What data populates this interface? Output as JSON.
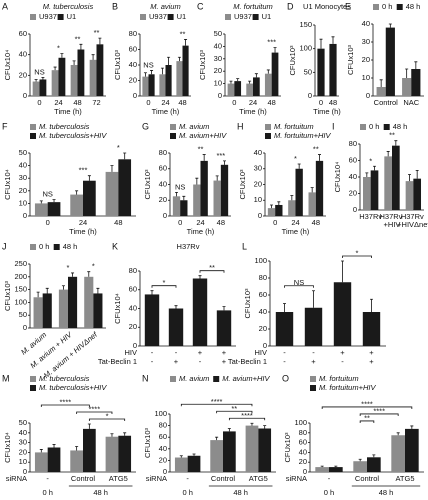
{
  "chart_data": [
    {
      "type": "bar",
      "panel": "A",
      "title": "M. tuberculosis",
      "ylabel": "CFUx10⁴",
      "xlabel": "Time (h)",
      "categories": [
        "0",
        "24",
        "48",
        "72"
      ],
      "series": [
        {
          "name": "U937",
          "color": "#8c8c8c",
          "values": [
            14,
            25,
            30,
            35
          ],
          "errors": [
            2,
            3,
            4,
            5
          ]
        },
        {
          "name": "U1",
          "color": "#1a1a1a",
          "values": [
            16,
            37,
            45,
            50
          ],
          "errors": [
            2,
            4,
            5,
            6
          ]
        }
      ],
      "ylim": [
        0,
        60
      ],
      "yticks": [
        0,
        20,
        40,
        60
      ],
      "significance": [
        "NS",
        "*",
        "**",
        "**"
      ]
    },
    {
      "type": "bar",
      "panel": "B",
      "title": "M. avium",
      "ylabel": "CFUx10³",
      "xlabel": "Time (h)",
      "categories": [
        "0",
        "24",
        "48"
      ],
      "series": [
        {
          "name": "U937",
          "color": "#8c8c8c",
          "values": [
            25,
            28,
            45
          ],
          "errors": [
            5,
            8,
            5
          ]
        },
        {
          "name": "U1",
          "color": "#1a1a1a",
          "values": [
            28,
            40,
            65
          ],
          "errors": [
            5,
            10,
            8
          ]
        }
      ],
      "ylim": [
        0,
        80
      ],
      "yticks": [
        0,
        20,
        40,
        60,
        80
      ],
      "significance": [
        "NS",
        null,
        "**"
      ]
    },
    {
      "type": "bar",
      "panel": "C",
      "title": "M. fortuitum",
      "ylabel": "CFUx10³",
      "xlabel": "Time (h)",
      "categories": [
        "0",
        "24",
        "48"
      ],
      "series": [
        {
          "name": "U937",
          "color": "#8c8c8c",
          "values": [
            10,
            10,
            18
          ],
          "errors": [
            2,
            2,
            3
          ]
        },
        {
          "name": "U1",
          "color": "#1a1a1a",
          "values": [
            12,
            15,
            35
          ],
          "errors": [
            2,
            3,
            4
          ]
        }
      ],
      "ylim": [
        0,
        50
      ],
      "yticks": [
        0,
        10,
        20,
        30,
        40,
        50
      ],
      "significance": [
        null,
        null,
        "***"
      ]
    },
    {
      "type": "bar",
      "panel": "D",
      "title": "U1 Monocytes",
      "ylabel": "CFUx10³",
      "xlabel": "Time (h)",
      "categories": [
        "0",
        "48"
      ],
      "series": [
        {
          "color": "#1a1a1a",
          "values": [
            100,
            110
          ],
          "errors": [
            20,
            15
          ]
        }
      ],
      "ylim": [
        0,
        150
      ],
      "yticks": [
        0,
        50,
        100,
        150
      ]
    },
    {
      "type": "bar",
      "panel": "E",
      "ylabel": "CFUx10³",
      "categories": [
        "Control",
        "NAC"
      ],
      "series": [
        {
          "name": "0 h",
          "color": "#8c8c8c",
          "values": [
            5,
            10
          ],
          "errors": [
            4,
            5
          ]
        },
        {
          "name": "48 h",
          "color": "#1a1a1a",
          "values": [
            38,
            15
          ],
          "errors": [
            2,
            4
          ]
        }
      ],
      "ylim": [
        0,
        40
      ],
      "yticks": [
        0,
        10,
        20,
        30,
        40
      ]
    },
    {
      "type": "bar",
      "panel": "F",
      "ylabel": "CFUx10⁴",
      "xlabel": "Time (h)",
      "categories": [
        "0",
        "24",
        "48"
      ],
      "series": [
        {
          "name": "M. tuberculosis",
          "color": "#8c8c8c",
          "values": [
            10,
            17,
            35
          ],
          "errors": [
            2,
            3,
            5
          ]
        },
        {
          "name": "M. tuberculosis+HIV",
          "color": "#1a1a1a",
          "values": [
            11,
            28,
            45
          ],
          "errors": [
            2,
            4,
            5
          ]
        }
      ],
      "ylim": [
        0,
        50
      ],
      "yticks": [
        0,
        10,
        20,
        30,
        40,
        50
      ],
      "significance": [
        "NS",
        "***",
        "*"
      ]
    },
    {
      "type": "bar",
      "panel": "G",
      "ylabel": "CFUx10³",
      "xlabel": "Time (h)",
      "categories": [
        "0",
        "24",
        "48"
      ],
      "series": [
        {
          "name": "M. avium",
          "color": "#8c8c8c",
          "values": [
            25,
            40,
            45
          ],
          "errors": [
            5,
            8,
            6
          ]
        },
        {
          "name": "M. avium+HIV",
          "color": "#1a1a1a",
          "values": [
            20,
            70,
            65
          ],
          "errors": [
            5,
            8,
            5
          ]
        }
      ],
      "ylim": [
        0,
        80
      ],
      "yticks": [
        0,
        20,
        40,
        60,
        80
      ],
      "significance": [
        "NS",
        "**",
        "***"
      ]
    },
    {
      "type": "bar",
      "panel": "H",
      "ylabel": "CFUx10³",
      "xlabel": "Time (h)",
      "categories": [
        "0",
        "24",
        "48"
      ],
      "series": [
        {
          "name": "M. fortuitum",
          "color": "#8c8c8c",
          "values": [
            5,
            10,
            15
          ],
          "errors": [
            2,
            3,
            3
          ]
        },
        {
          "name": "M. fortuitum+HIV",
          "color": "#1a1a1a",
          "values": [
            7,
            30,
            35
          ],
          "errors": [
            2,
            3,
            4
          ]
        }
      ],
      "ylim": [
        0,
        40
      ],
      "yticks": [
        0,
        10,
        20,
        30,
        40
      ],
      "significance": [
        null,
        "*",
        "**"
      ]
    },
    {
      "type": "bar",
      "panel": "I",
      "ylabel": "CFUx10⁴",
      "categories": [
        "H37Rv",
        "H37Rv +HIV",
        "H37Rv +HIVΔnef"
      ],
      "series": [
        {
          "name": "0 h",
          "color": "#8c8c8c",
          "values": [
            40,
            65,
            35
          ],
          "errors": [
            5,
            6,
            8
          ]
        },
        {
          "name": "48 h",
          "color": "#1a1a1a",
          "values": [
            48,
            78,
            38
          ],
          "errors": [
            5,
            6,
            10
          ]
        }
      ],
      "ylim": [
        0,
        80
      ],
      "yticks": [
        0,
        20,
        40,
        60,
        80
      ],
      "significance": [
        "*",
        "**",
        null
      ]
    },
    {
      "type": "bar",
      "panel": "J",
      "ylabel": "CFUx10³",
      "categories": [
        "M. avium",
        "M. avium + HIV",
        "M. avium + HIVΔnef"
      ],
      "series": [
        {
          "name": "0 h",
          "color": "#8c8c8c",
          "values": [
            120,
            150,
            200
          ],
          "errors": [
            20,
            15,
            20
          ]
        },
        {
          "name": "48 h",
          "color": "#1a1a1a",
          "values": [
            135,
            200,
            135
          ],
          "errors": [
            20,
            15,
            20
          ]
        }
      ],
      "ylim": [
        0,
        250
      ],
      "yticks": [
        0,
        50,
        100,
        150,
        200,
        250
      ],
      "significance": [
        null,
        "*",
        "*"
      ]
    },
    {
      "type": "bar",
      "panel": "K",
      "title": "H37Rv",
      "ylabel": "CFUx10⁴",
      "series": [
        {
          "color": "#1a1a1a",
          "values": [
            55,
            40,
            72,
            38
          ],
          "errors": [
            4,
            3,
            3,
            4
          ]
        }
      ],
      "conditions": [
        {
          "name": "HIV",
          "values": [
            "-",
            "-",
            "+",
            "+"
          ]
        },
        {
          "name": "Tat-Beclin 1",
          "values": [
            "-",
            "+",
            "-",
            "+"
          ]
        }
      ],
      "ylim": [
        0,
        80
      ],
      "yticks": [
        0,
        20,
        40,
        60,
        80
      ],
      "brackets": [
        "*",
        "**"
      ]
    },
    {
      "type": "bar",
      "panel": "L",
      "ylabel": "CFUx10³",
      "series": [
        {
          "color": "#1a1a1a",
          "values": [
            40,
            45,
            75,
            40
          ],
          "errors": [
            10,
            20,
            25,
            15
          ]
        }
      ],
      "conditions": [
        {
          "name": "HIV",
          "values": [
            "-",
            "-",
            "+",
            "+"
          ]
        },
        {
          "name": "Tat-Beclin 1",
          "values": [
            "-",
            "+",
            "-",
            "+"
          ]
        }
      ],
      "ylim": [
        0,
        100
      ],
      "yticks": [
        0,
        20,
        40,
        60,
        80,
        100
      ],
      "brackets": [
        "NS",
        "*"
      ]
    },
    {
      "type": "bar",
      "panel": "M",
      "ylabel": "CFUx10⁴",
      "xlabel": "siRNA",
      "categories": [
        "-",
        "Control",
        "ATG5"
      ],
      "time_labels": [
        "0 h",
        "48 h"
      ],
      "series": [
        {
          "name": "M. tuberculosis",
          "color": "#8c8c8c",
          "values": [
            20,
            22,
            36
          ],
          "errors": [
            3,
            4,
            3
          ]
        },
        {
          "name": "M. tuberculosis+HIV",
          "color": "#1a1a1a",
          "values": [
            25,
            44,
            37
          ],
          "errors": [
            3,
            5,
            3
          ]
        }
      ],
      "ylim": [
        0,
        50
      ],
      "yticks": [
        0,
        10,
        20,
        30,
        40,
        50
      ],
      "brackets": [
        "****",
        "****",
        "*"
      ]
    },
    {
      "type": "bar",
      "panel": "N",
      "ylabel": "CFUx10³",
      "xlabel": "siRNA",
      "categories": [
        "-",
        "Control",
        "ATG5"
      ],
      "time_labels": [
        "0 h",
        "48 h"
      ],
      "series": [
        {
          "name": "M. avium",
          "color": "#8c8c8c",
          "values": [
            25,
            55,
            80
          ],
          "errors": [
            3,
            5,
            4
          ]
        },
        {
          "name": "M. avium+HIV",
          "color": "#1a1a1a",
          "values": [
            28,
            70,
            75
          ],
          "errors": [
            3,
            5,
            5
          ]
        }
      ],
      "ylim": [
        0,
        100
      ],
      "yticks": [
        0,
        20,
        40,
        60,
        80,
        100
      ],
      "brackets": [
        "****",
        "**",
        "****"
      ]
    },
    {
      "type": "bar",
      "panel": "O",
      "ylabel": "CFUx10³",
      "xlabel": "siRNA",
      "categories": [
        "-",
        "Control",
        "ATG5"
      ],
      "time_labels": [
        "0 h",
        "48 h"
      ],
      "series": [
        {
          "name": "M. fortuitum",
          "color": "#8c8c8c",
          "values": [
            10,
            22,
            75
          ],
          "errors": [
            2,
            4,
            5
          ]
        },
        {
          "name": "M. fortuitum+HIV",
          "color": "#1a1a1a",
          "values": [
            10,
            30,
            88
          ],
          "errors": [
            2,
            5,
            6
          ]
        }
      ],
      "ylim": [
        0,
        100
      ],
      "yticks": [
        0,
        20,
        40,
        60,
        80,
        100
      ],
      "brackets": [
        "****",
        "****",
        "**"
      ]
    }
  ]
}
